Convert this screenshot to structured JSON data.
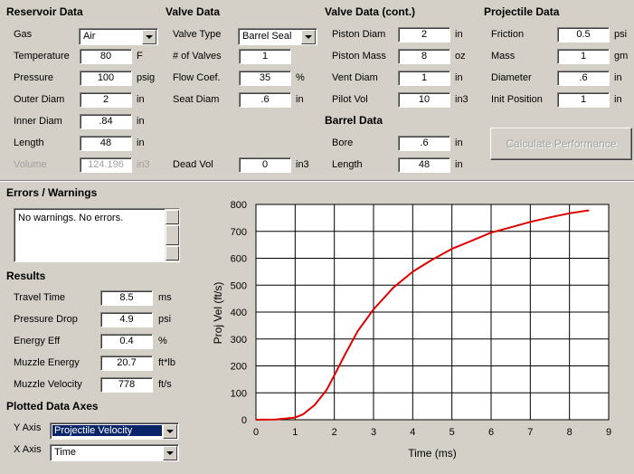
{
  "reservoir": {
    "title": "Reservoir Data",
    "gas_label": "Gas",
    "gas_value": "Air",
    "temperature_label": "Temperature",
    "temperature_value": "80",
    "temperature_unit": "F",
    "pressure_label": "Pressure",
    "pressure_value": "100",
    "pressure_unit": "psig",
    "outer_diam_label": "Outer Diam",
    "outer_diam_value": "2",
    "outer_diam_unit": "in",
    "inner_diam_label": "Inner Diam",
    "inner_diam_value": ".84",
    "inner_diam_unit": "in",
    "length_label": "Length",
    "length_value": "48",
    "length_unit": "in",
    "volume_label": "Volume",
    "volume_value": "124.196",
    "volume_unit": "in3"
  },
  "valve": {
    "title": "Valve Data",
    "type_label": "Valve Type",
    "type_value": "Barrel Seal",
    "num_label": "# of Valves",
    "num_value": "1",
    "flow_label": "Flow Coef.",
    "flow_value": "35",
    "flow_unit": "%",
    "seat_label": "Seat Diam",
    "seat_value": ".6",
    "seat_unit": "in",
    "dead_label": "Dead Vol",
    "dead_value": "0",
    "dead_unit": "in3"
  },
  "valve_cont": {
    "title": "Valve Data (cont.)",
    "piston_diam_label": "Piston Diam",
    "piston_diam_value": "2",
    "piston_diam_unit": "in",
    "piston_mass_label": "Piston Mass",
    "piston_mass_value": "8",
    "piston_mass_unit": "oz",
    "vent_label": "Vent Diam",
    "vent_value": "1",
    "vent_unit": "in",
    "pilot_label": "Pilot Vol",
    "pilot_value": "10",
    "pilot_unit": "in3"
  },
  "barrel": {
    "title": "Barrel Data",
    "bore_label": "Bore",
    "bore_value": ".6",
    "bore_unit": "in",
    "length_label": "Length",
    "length_value": "48",
    "length_unit": "in"
  },
  "projectile": {
    "title": "Projectile Data",
    "friction_label": "Friction",
    "friction_value": "0.5",
    "friction_unit": "psi",
    "mass_label": "Mass",
    "mass_value": "1",
    "mass_unit": "gm",
    "diameter_label": "Diameter",
    "diameter_value": ".6",
    "diameter_unit": "in",
    "init_label": "Init Position",
    "init_value": "1",
    "init_unit": "in"
  },
  "calc_button": "Calculate Performance",
  "errors": {
    "title": "Errors / Warnings",
    "text": "No warnings.  No errors."
  },
  "results": {
    "title": "Results",
    "travel_label": "Travel Time",
    "travel_value": "8.5",
    "travel_unit": "ms",
    "pdrop_label": "Pressure Drop",
    "pdrop_value": "4.9",
    "pdrop_unit": "psi",
    "eff_label": "Energy Eff",
    "eff_value": "0.4",
    "eff_unit": "%",
    "energy_label": "Muzzle Energy",
    "energy_value": "20.7",
    "energy_unit": "ft*lb",
    "velocity_label": "Muzzle Velocity",
    "velocity_value": "778",
    "velocity_unit": "ft/s"
  },
  "axes": {
    "title": "Plotted Data Axes",
    "y_label": "Y Axis",
    "y_value": "Projectile Velocity",
    "x_label": "X Axis",
    "x_value": "Time"
  },
  "colors": {
    "series": "#e00000",
    "background": "#d4d0c8"
  },
  "chart_data": {
    "type": "line",
    "xlabel": "Time (ms)",
    "ylabel": "Proj Vel (ft/s)",
    "xlim": [
      0,
      9
    ],
    "ylim": [
      0,
      800
    ],
    "xticks": [
      "0",
      "1",
      "2",
      "3",
      "4",
      "5",
      "6",
      "7",
      "8",
      "9"
    ],
    "yticks": [
      "0",
      "100",
      "200",
      "300",
      "400",
      "500",
      "600",
      "700",
      "800"
    ],
    "grid": true,
    "series": [
      {
        "x": [
          0,
          0.5,
          1.0,
          1.2,
          1.5,
          1.8,
          2.0,
          2.3,
          2.6,
          3.0,
          3.5,
          4.0,
          4.5,
          5.0,
          5.5,
          6.0,
          6.5,
          7.0,
          7.5,
          8.0,
          8.5
        ],
        "y": [
          0,
          1,
          8,
          20,
          55,
          110,
          165,
          250,
          330,
          410,
          490,
          550,
          595,
          635,
          665,
          695,
          715,
          735,
          752,
          767,
          778
        ]
      }
    ]
  }
}
